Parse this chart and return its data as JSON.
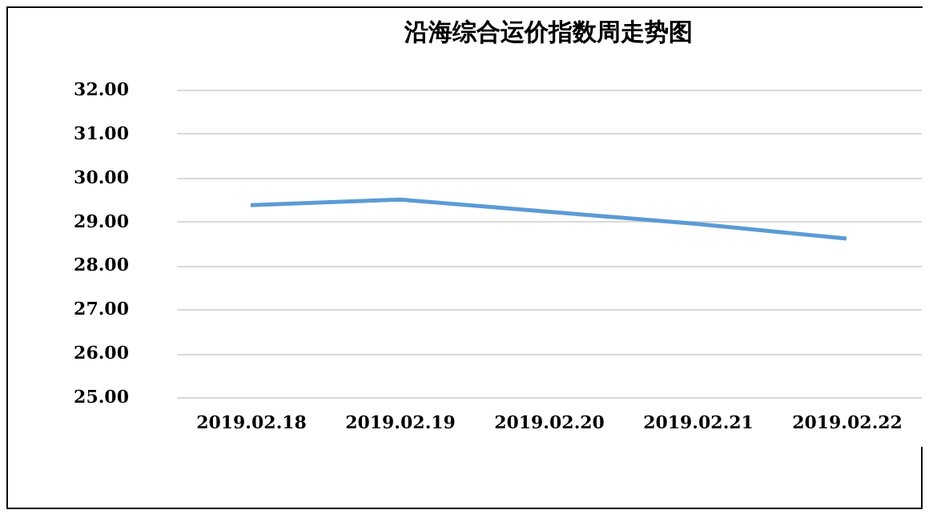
{
  "chart_data": {
    "type": "line",
    "title": "沿海综合运价指数周走势图",
    "categories": [
      "2019.02.18",
      "2019.02.19",
      "2019.02.20",
      "2019.02.21",
      "2019.02.22"
    ],
    "series": [
      {
        "color": "#5b9bd5",
        "values": [
          29.37,
          29.5,
          29.22,
          28.94,
          28.61
        ]
      }
    ],
    "ylim": [
      25,
      32
    ],
    "yticks": [
      {
        "value": 25,
        "label": "25.00"
      },
      {
        "value": 26,
        "label": "26.00"
      },
      {
        "value": 27,
        "label": "27.00"
      },
      {
        "value": 28,
        "label": "28.00"
      },
      {
        "value": 29,
        "label": "29.00"
      },
      {
        "value": 30,
        "label": "30.00"
      },
      {
        "value": 31,
        "label": "31.00"
      },
      {
        "value": 32,
        "label": "32.00"
      }
    ],
    "grid": "y",
    "legend": false,
    "marker": "none",
    "line_style": "solid"
  }
}
